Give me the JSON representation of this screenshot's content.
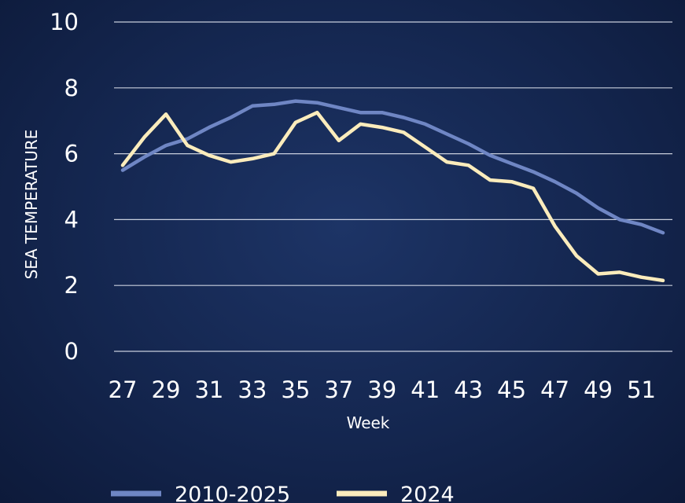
{
  "chart_data": {
    "type": "line",
    "xlabel": "Week",
    "ylabel": "SEA TEMPERATURE",
    "ylim": [
      0,
      10
    ],
    "yticks": [
      0,
      2,
      4,
      6,
      8,
      10
    ],
    "x": [
      27,
      28,
      29,
      30,
      31,
      32,
      33,
      34,
      35,
      36,
      37,
      38,
      39,
      40,
      41,
      42,
      43,
      44,
      45,
      46,
      47,
      48,
      49,
      50,
      51,
      52
    ],
    "xtick_labels": [
      "27",
      "29",
      "31",
      "33",
      "35",
      "37",
      "39",
      "41",
      "43",
      "45",
      "47",
      "49",
      "51"
    ],
    "grid": true,
    "legend_position": "bottom",
    "series": [
      {
        "name": "2010-2025",
        "color": "#6f86c4",
        "values": [
          5.5,
          5.9,
          6.25,
          6.45,
          6.8,
          7.1,
          7.45,
          7.5,
          7.6,
          7.55,
          7.4,
          7.25,
          7.25,
          7.1,
          6.9,
          6.6,
          6.3,
          5.95,
          5.7,
          5.45,
          5.15,
          4.8,
          4.35,
          4.0,
          3.85,
          3.6
        ]
      },
      {
        "name": "2024",
        "color": "#fbecbc",
        "values": [
          5.65,
          6.5,
          7.2,
          6.25,
          5.95,
          5.75,
          5.85,
          6.0,
          6.95,
          7.25,
          6.4,
          6.9,
          6.8,
          6.65,
          6.2,
          5.75,
          5.65,
          5.2,
          5.15,
          4.95,
          3.8,
          2.9,
          2.35,
          2.4,
          2.25,
          2.15
        ]
      }
    ]
  }
}
